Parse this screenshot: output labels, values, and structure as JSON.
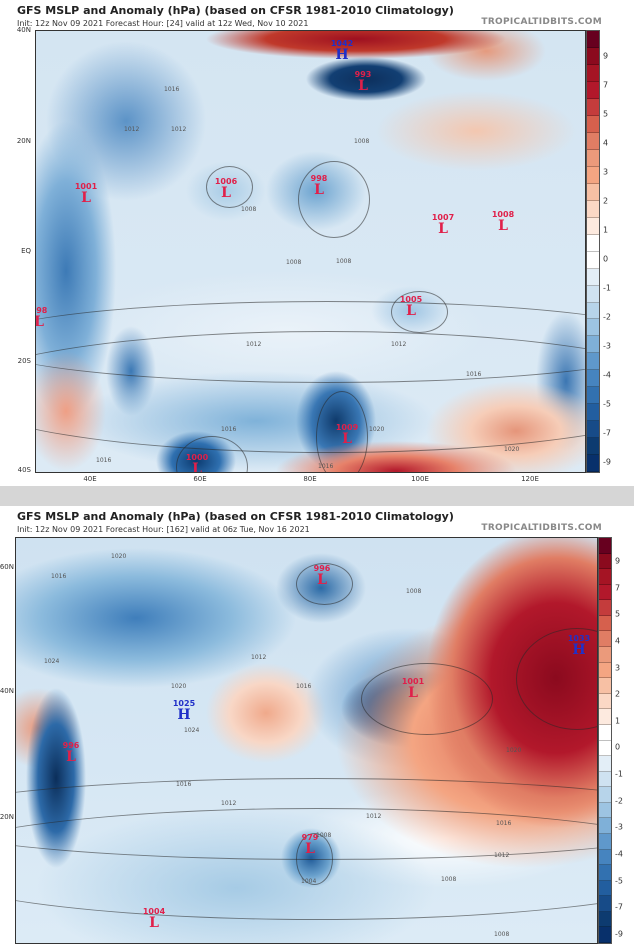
{
  "panels": [
    {
      "title": "GFS MSLP and Anomaly (hPa) (based on CFSR 1981-2010 Climatology)",
      "subtitle": "Init: 12z Nov 09 2021   Forecast Hour: [24]   valid at 12z Wed, Nov 10 2021",
      "site": "TROPICALTIDBITS.COM",
      "lat_labels": [
        "40N",
        "20N",
        "EQ",
        "20S",
        "40S"
      ],
      "lon_labels": [
        "40E",
        "60E",
        "80E",
        "100E",
        "120E"
      ],
      "centers": [
        {
          "type": "H",
          "value": "1042"
        },
        {
          "type": "L",
          "value": "993"
        },
        {
          "type": "L",
          "value": "1001"
        },
        {
          "type": "L",
          "value": "1006"
        },
        {
          "type": "L",
          "value": "998"
        },
        {
          "type": "L",
          "value": "1007"
        },
        {
          "type": "L",
          "value": "1008"
        },
        {
          "type": "L",
          "value": "998"
        },
        {
          "type": "L",
          "value": "1005"
        },
        {
          "type": "L",
          "value": "1009"
        },
        {
          "type": "L",
          "value": "1000"
        }
      ],
      "isobar_labels": [
        "1016",
        "1012",
        "1012",
        "1008",
        "1008",
        "1008",
        "1008",
        "1012",
        "1012",
        "1016",
        "1016",
        "1020",
        "1016",
        "1020",
        "1020",
        "1016"
      ]
    },
    {
      "title": "GFS MSLP and Anomaly (hPa) (based on CFSR 1981-2010 Climatology)",
      "subtitle": "Init: 12z Nov 09 2021   Forecast Hour: [162]   valid at 06z Tue, Nov 16 2021",
      "site": "TROPICALTIDBITS.COM",
      "lat_labels": [
        "60N",
        "40N",
        "20N"
      ],
      "centers": [
        {
          "type": "L",
          "value": "996"
        },
        {
          "type": "H",
          "value": "1033"
        },
        {
          "type": "L",
          "value": "1001"
        },
        {
          "type": "H",
          "value": "1025"
        },
        {
          "type": "L",
          "value": "996"
        },
        {
          "type": "L",
          "value": "979"
        },
        {
          "type": "L",
          "value": "1004"
        }
      ],
      "isobar_labels": [
        "1020",
        "1016",
        "1024",
        "1008",
        "1012",
        "1016",
        "1020",
        "1024",
        "1016",
        "1012",
        "1012",
        "1016",
        "1012",
        "1008",
        "1004",
        "1008",
        "1020",
        "1008"
      ]
    }
  ],
  "colorbar": {
    "ticks": [
      "9",
      "7",
      "5",
      "4",
      "3",
      "2",
      "1",
      "0",
      "-1",
      "-2",
      "-3",
      "-4",
      "-5",
      "-7",
      "-9"
    ],
    "colors": [
      "#67001f",
      "#8b0a1e",
      "#a51424",
      "#b2182b",
      "#c43c3c",
      "#d6604d",
      "#e07d64",
      "#eb9a7b",
      "#f4a582",
      "#f7c0a4",
      "#fbd8c5",
      "#fdeadf",
      "#ffffff",
      "#ffffff",
      "#e3eef7",
      "#cfe2f1",
      "#b7d4ea",
      "#9dc4e2",
      "#7fb0d8",
      "#5f98cb",
      "#4684bf",
      "#3271b0",
      "#225e9f",
      "#174b88",
      "#0d3b70",
      "#08306b"
    ]
  }
}
